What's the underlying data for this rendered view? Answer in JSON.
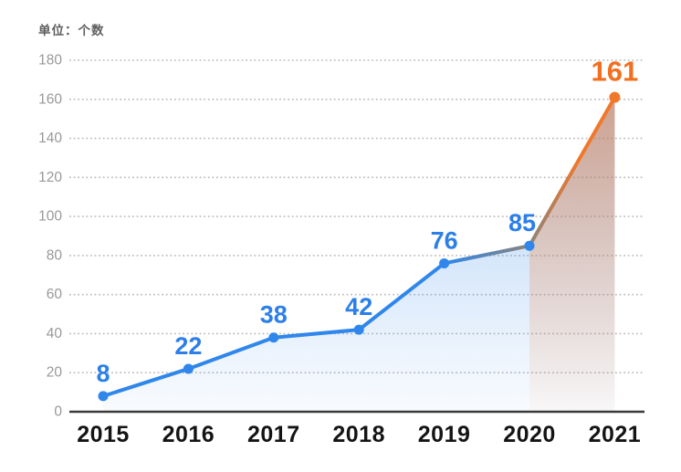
{
  "chart_data": {
    "type": "line",
    "unit_label": "单位：个数",
    "categories": [
      "2015",
      "2016",
      "2017",
      "2018",
      "2019",
      "2020",
      "2021"
    ],
    "values": [
      8,
      22,
      38,
      42,
      76,
      85,
      161
    ],
    "point_labels": [
      "8",
      "22",
      "38",
      "42",
      "76",
      "85",
      "161"
    ],
    "yticks": [
      "0",
      "20",
      "40",
      "60",
      "80",
      "100",
      "120",
      "140",
      "160",
      "180"
    ],
    "ylim": [
      0,
      180
    ],
    "ytick_step": 20,
    "grid": "horizontal-dotted",
    "legend": "none",
    "highlight_last_point": true,
    "colors": {
      "line_blue": "#2F86EB",
      "line_orange": "#F0772B",
      "line_transition_gray": "#8E8478",
      "marker_blue": "#2F86EB",
      "marker_orange": "#F0772B",
      "value_label_blue": "#2C7FE8",
      "value_label_orange": "#F26F1F",
      "fill_blue_rgb": "47,133,232",
      "fill_orange_rgb": "240,119,43",
      "grid_dots": "#BCBCBC",
      "axis_line": "#3A3A3A",
      "ytick_text": "#989898",
      "xtick_text": "#141414",
      "background": "#FFFFFF"
    }
  }
}
